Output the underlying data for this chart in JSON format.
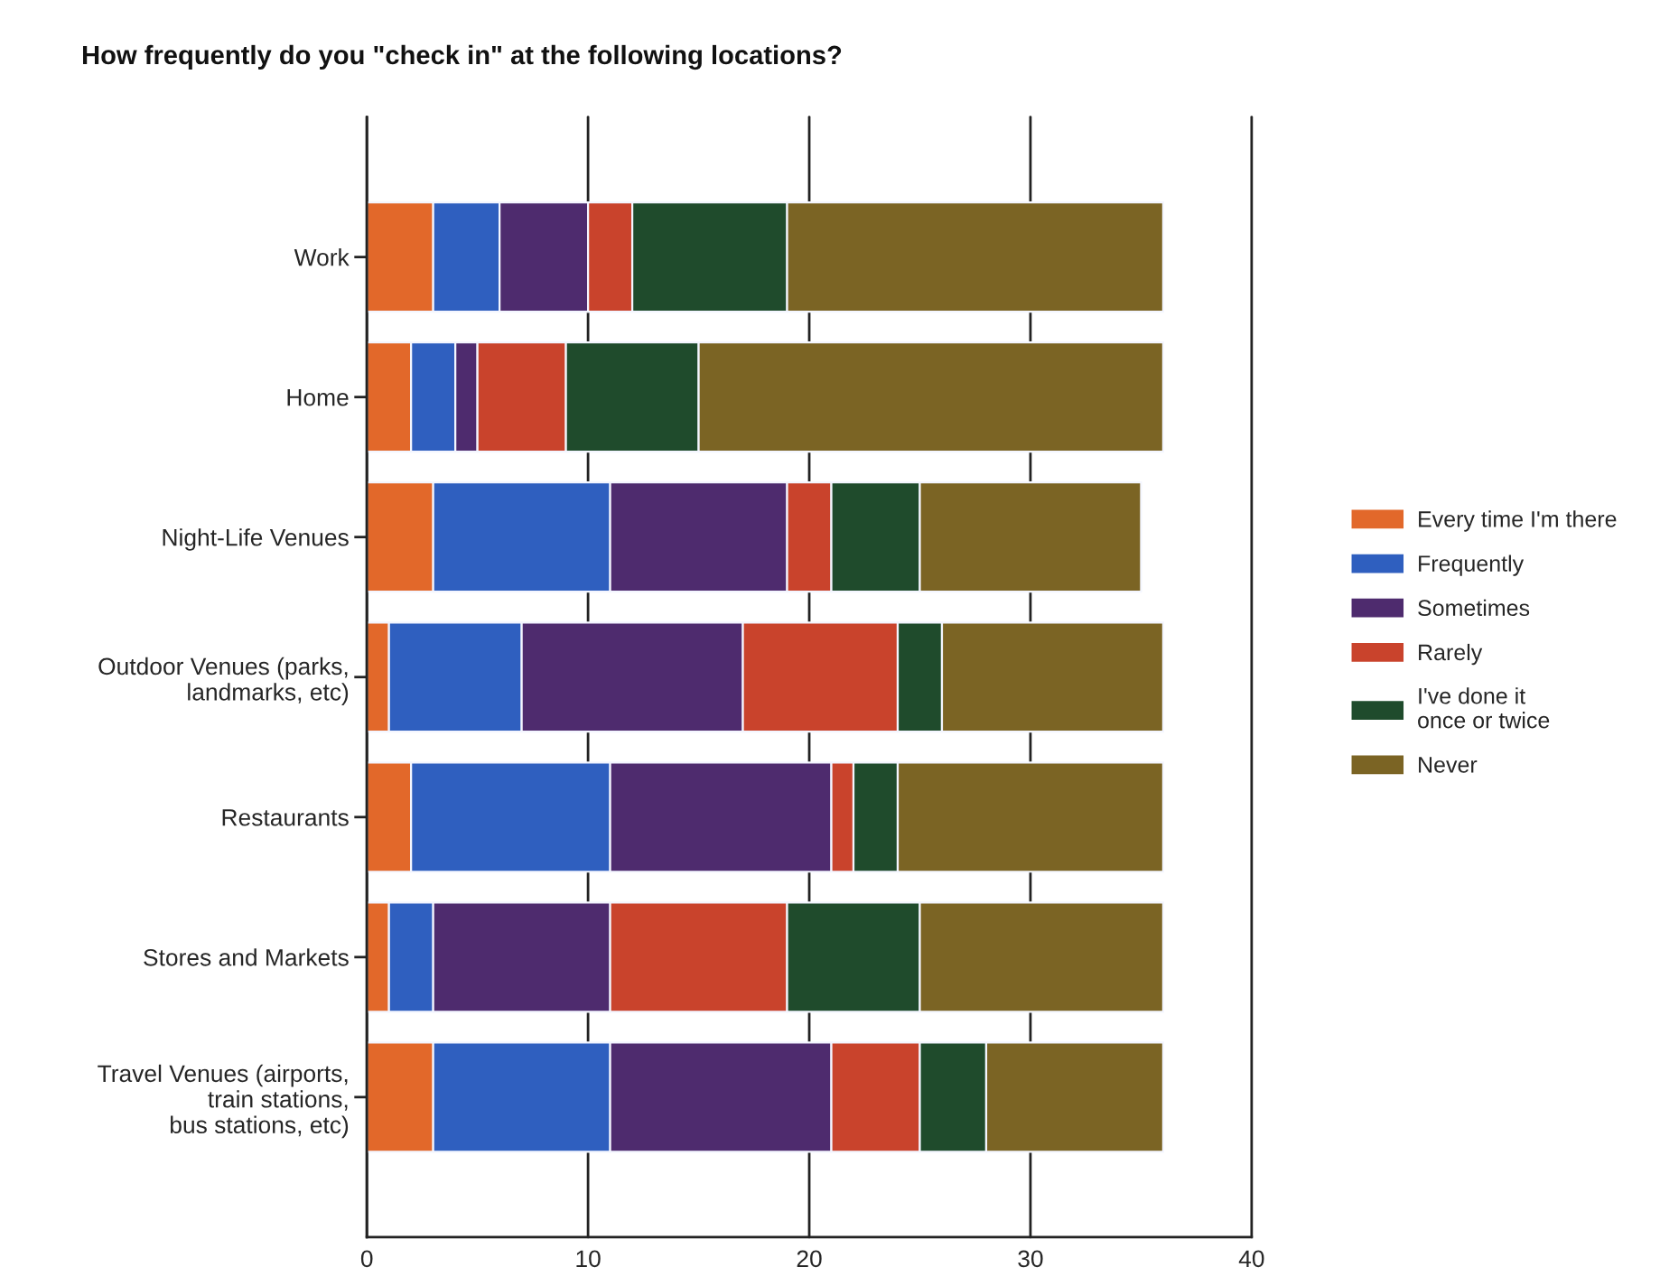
{
  "chart_data": {
    "type": "bar",
    "orientation": "horizontal",
    "stacked": true,
    "title": "How frequently do you \"check in\" at the following locations?",
    "categories": [
      "Work",
      "Home",
      "Night-Life Venues",
      "Outdoor Venues (parks,\nlandmarks, etc)",
      "Restaurants",
      "Stores and Markets",
      "Travel Venues (airports,\ntrain stations,\nbus stations, etc)"
    ],
    "series": [
      {
        "name": "Every time I'm there",
        "color": "#e2682a",
        "values": [
          3,
          2,
          3,
          1,
          2,
          1,
          3
        ]
      },
      {
        "name": "Frequently",
        "color": "#2f5fbf",
        "values": [
          3,
          2,
          8,
          6,
          9,
          2,
          8
        ]
      },
      {
        "name": "Sometimes",
        "color": "#4e2b6e",
        "values": [
          4,
          1,
          8,
          10,
          10,
          8,
          10
        ]
      },
      {
        "name": "Rarely",
        "color": "#c9432c",
        "values": [
          2,
          4,
          2,
          7,
          1,
          8,
          4
        ]
      },
      {
        "name": "I've done it\nonce or twice",
        "color": "#1f4b2c",
        "values": [
          7,
          6,
          4,
          2,
          2,
          6,
          3
        ]
      },
      {
        "name": "Never",
        "color": "#7b6424",
        "values": [
          17,
          21,
          10,
          10,
          12,
          11,
          8
        ]
      }
    ],
    "xlim": [
      0,
      40
    ],
    "xticks": [
      0,
      10,
      20,
      30,
      40
    ],
    "grid": "x",
    "legend": "right"
  }
}
